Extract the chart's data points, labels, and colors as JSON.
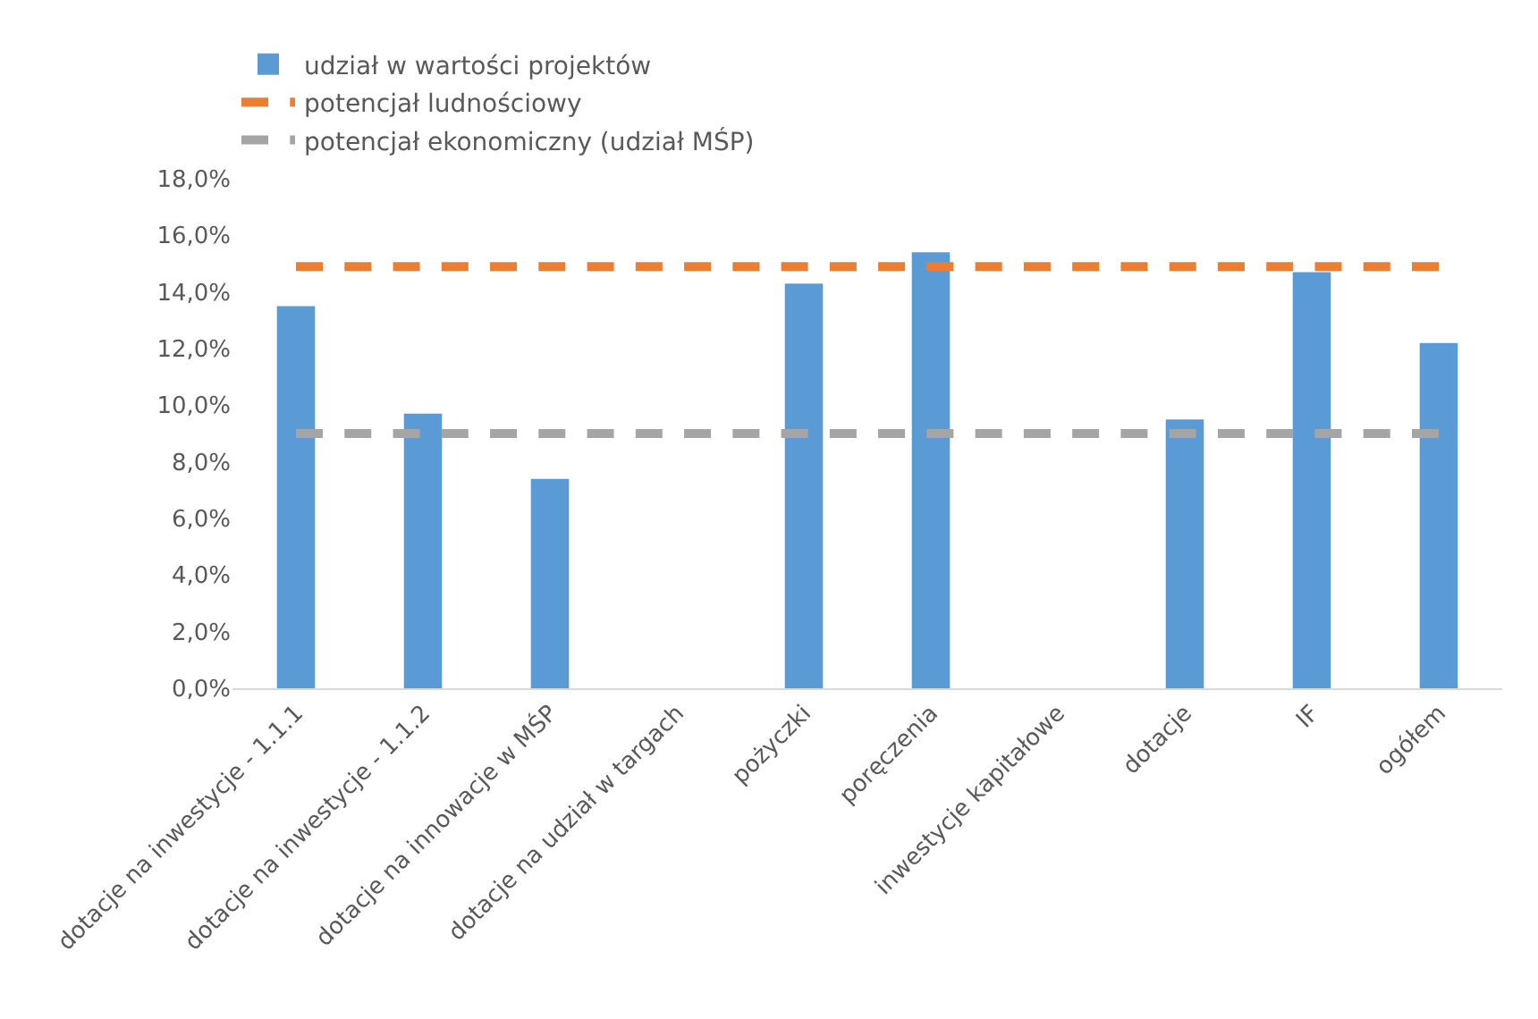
{
  "chart_data": {
    "type": "bar",
    "categories": [
      "dotacje na inwestycje - 1.1.1",
      "dotacje na inwestycje - 1.1.2",
      "dotacje na innowacje w MŚP",
      "dotacje na udział w targach",
      "pożyczki",
      "poręczenia",
      "inwestycje kapitałowe",
      "dotacje",
      "IF",
      "ogółem"
    ],
    "series": [
      {
        "name": "udział w wartości projektów",
        "color": "#5b9bd5",
        "values": [
          13.5,
          9.7,
          7.4,
          null,
          14.3,
          15.4,
          null,
          9.5,
          14.7,
          12.2
        ]
      },
      {
        "name": "potencjał ludnościowy",
        "color": "#ed7d31",
        "type": "line",
        "line_style": "dashed",
        "values": [
          14.9,
          14.9,
          14.9,
          14.9,
          14.9,
          14.9,
          14.9,
          14.9,
          14.9,
          14.9
        ]
      },
      {
        "name": "potencjał ekonomiczny (udział MŚP)",
        "color": "#a5a5a5",
        "type": "line",
        "line_style": "dashed",
        "values": [
          9.0,
          9.0,
          9.0,
          9.0,
          9.0,
          9.0,
          9.0,
          9.0,
          9.0,
          9.0
        ]
      }
    ],
    "ylim": [
      0,
      18
    ],
    "yticks": [
      {
        "value": 0,
        "label": "0,0%"
      },
      {
        "value": 2,
        "label": "2,0%"
      },
      {
        "value": 4,
        "label": "4,0%"
      },
      {
        "value": 6,
        "label": "6,0%"
      },
      {
        "value": 8,
        "label": "8,0%"
      },
      {
        "value": 10,
        "label": "10,0%"
      },
      {
        "value": 12,
        "label": "12,0%"
      },
      {
        "value": 14,
        "label": "14,0%"
      },
      {
        "value": 16,
        "label": "16,0%"
      },
      {
        "value": 18,
        "label": "18,0%"
      }
    ],
    "legend": "top",
    "marker": "none"
  }
}
